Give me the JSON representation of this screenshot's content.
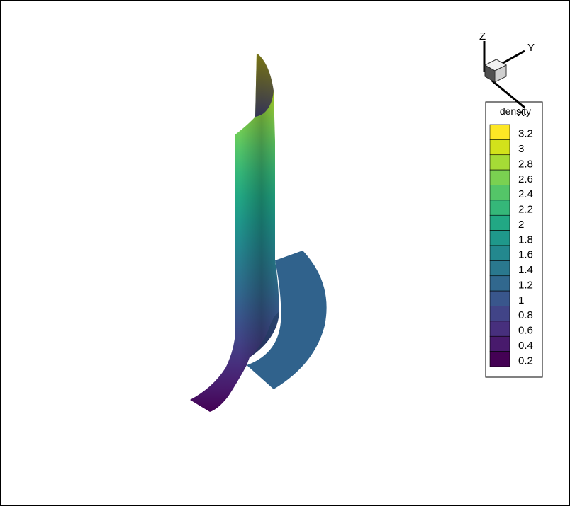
{
  "chart_data": {
    "type": "surface-3d",
    "variable": "density",
    "legend": {
      "title": "density",
      "placement": "right",
      "levels": [
        {
          "value": 0.2,
          "label": "0.2",
          "color": "#440154"
        },
        {
          "value": 0.4,
          "label": "0.4",
          "color": "#481a6c"
        },
        {
          "value": 0.6,
          "label": "0.6",
          "color": "#472f7d"
        },
        {
          "value": 0.8,
          "label": "0.8",
          "color": "#414487"
        },
        {
          "value": 1.0,
          "label": "1",
          "color": "#39568c"
        },
        {
          "value": 1.2,
          "label": "1.2",
          "color": "#31688e"
        },
        {
          "value": 1.4,
          "label": "1.4",
          "color": "#2a788e"
        },
        {
          "value": 1.6,
          "label": "1.6",
          "color": "#23888e"
        },
        {
          "value": 1.8,
          "label": "1.8",
          "color": "#1f988b"
        },
        {
          "value": 2.0,
          "label": "2",
          "color": "#22a884"
        },
        {
          "value": 2.2,
          "label": "2.2",
          "color": "#35b779"
        },
        {
          "value": 2.4,
          "label": "2.4",
          "color": "#54c568"
        },
        {
          "value": 2.6,
          "label": "2.6",
          "color": "#7ad151"
        },
        {
          "value": 2.8,
          "label": "2.8",
          "color": "#a5db36"
        },
        {
          "value": 3.0,
          "label": "3",
          "color": "#d2e21b"
        },
        {
          "value": 3.2,
          "label": "3.2",
          "color": "#fde725"
        }
      ]
    },
    "axes_triad": {
      "labels": [
        "Z",
        "Y",
        "X"
      ]
    },
    "surfaces": [
      {
        "name": "vertical-curved-sheet",
        "density_range": [
          0.2,
          3.2
        ],
        "gradient": "bottom-to-top"
      },
      {
        "name": "flat-annular-sector",
        "density": 1.3,
        "color": "#30628c"
      }
    ]
  }
}
